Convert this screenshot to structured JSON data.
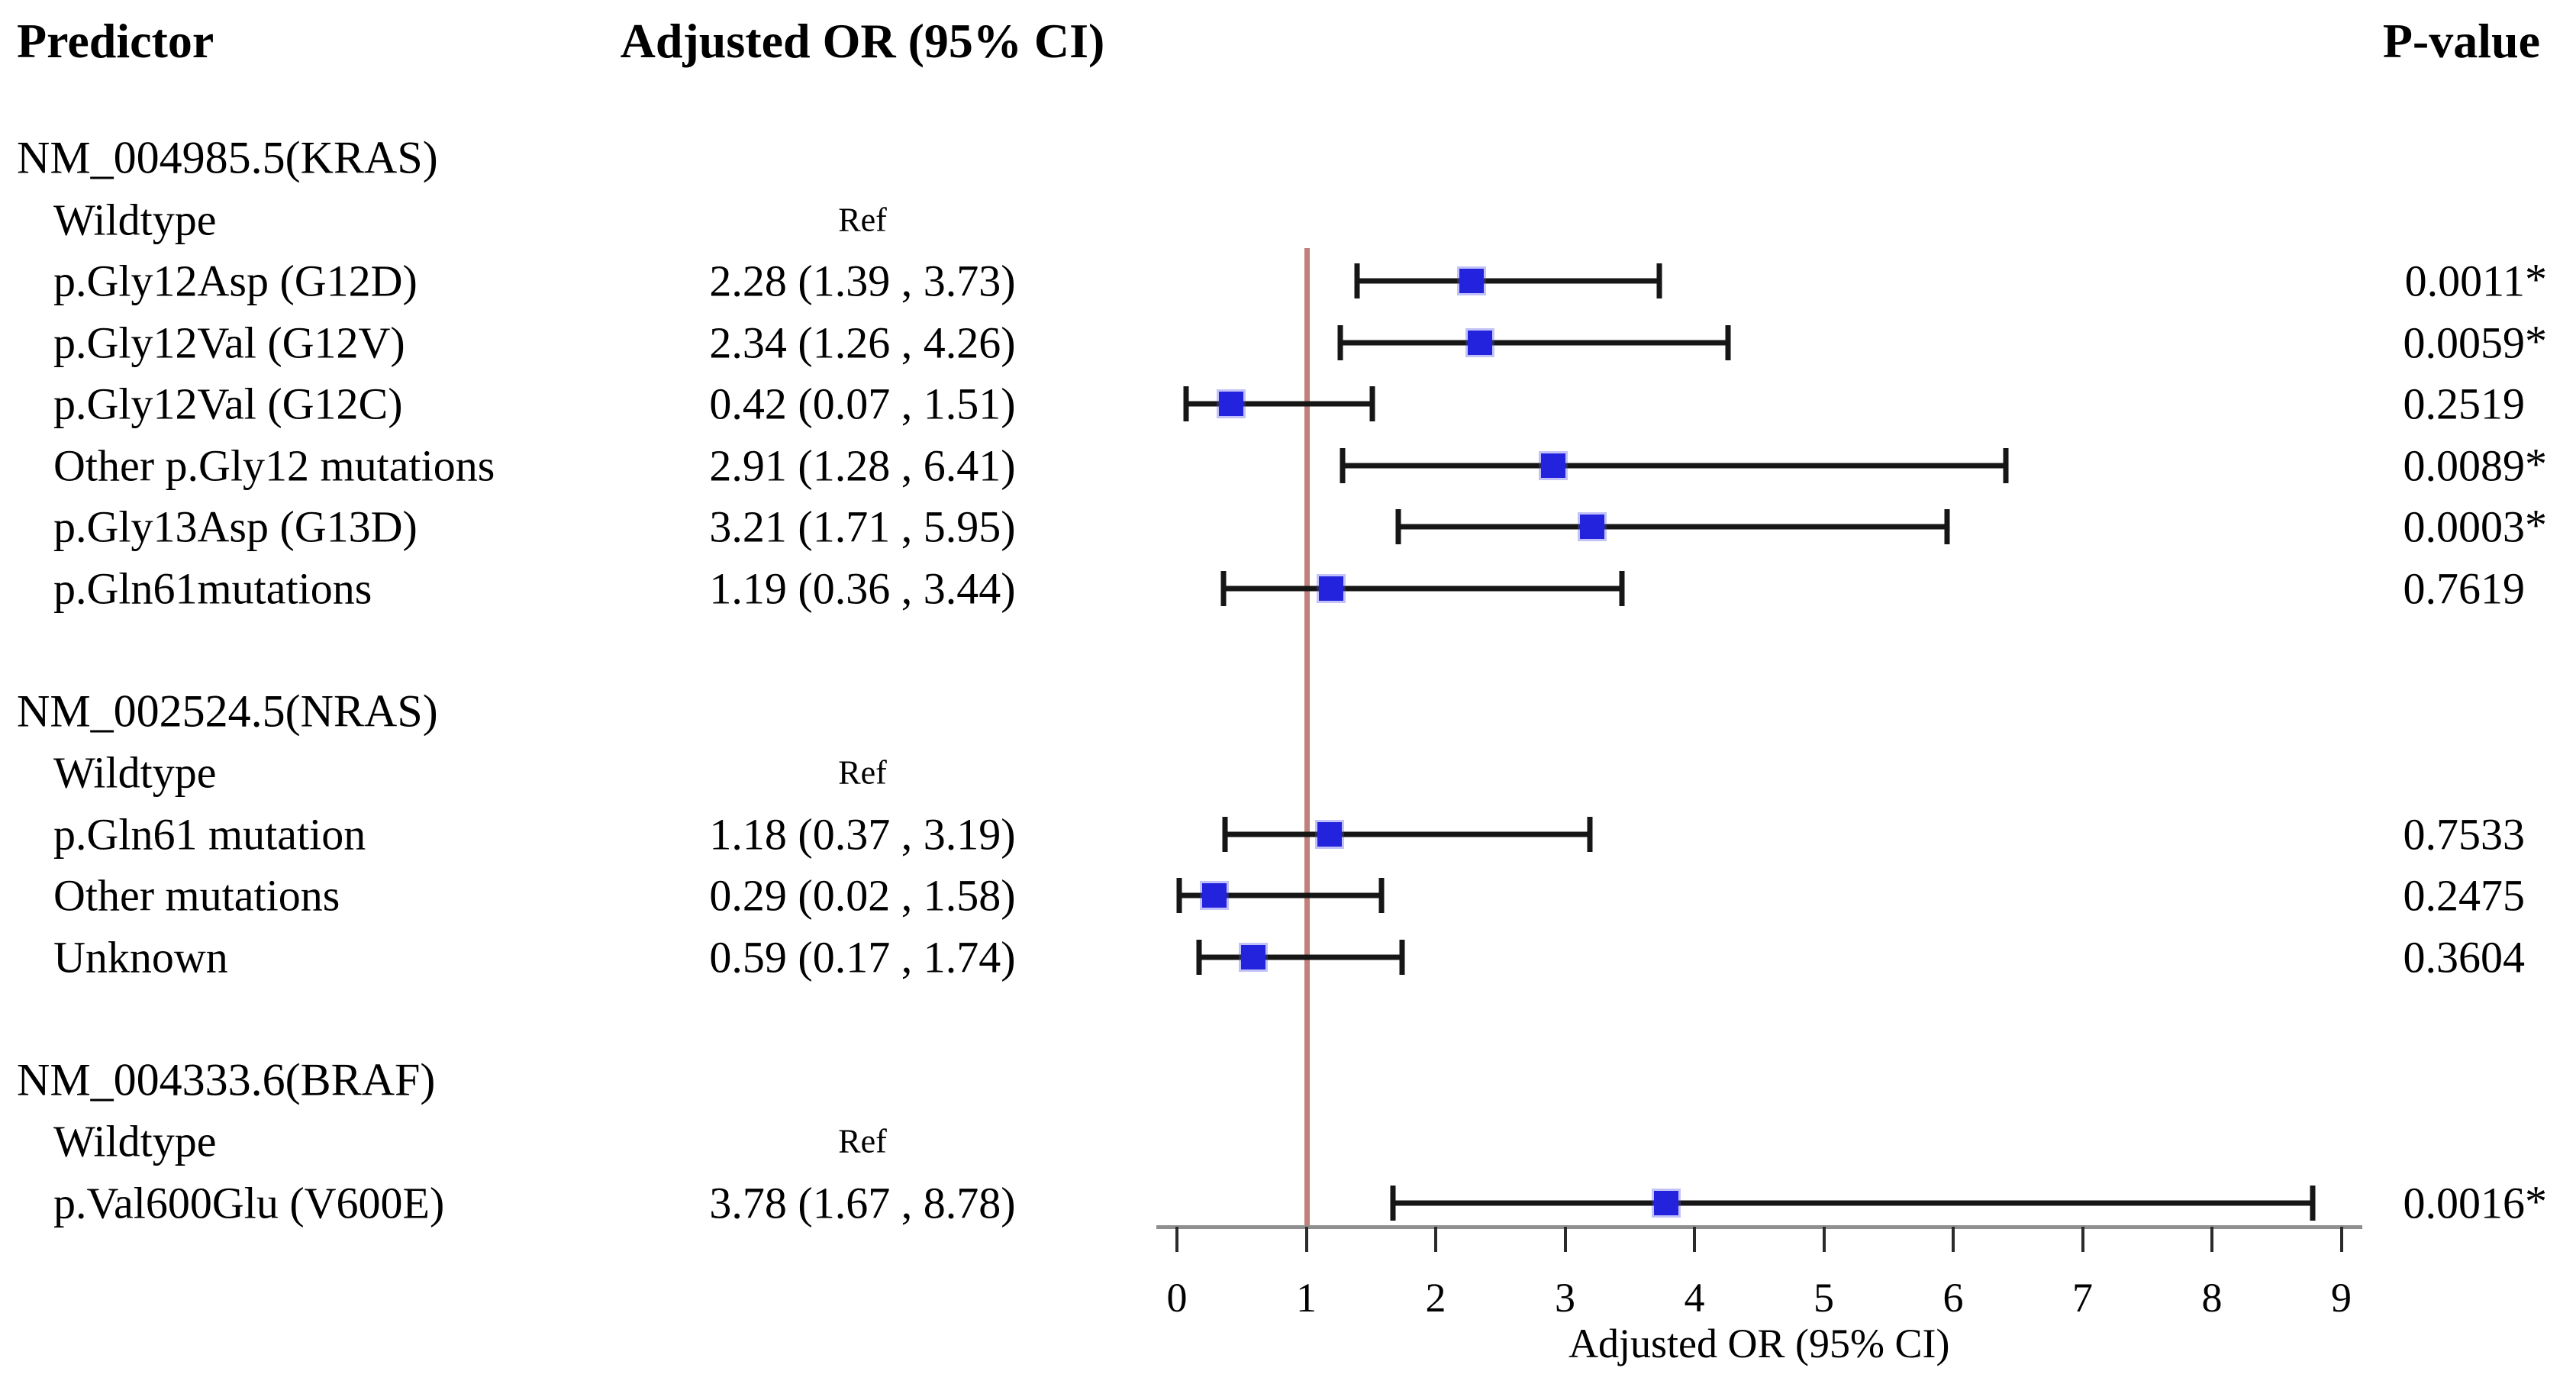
{
  "columns": {
    "predictor": "Predictor",
    "adjusted_or": "Adjusted OR (95% CI)",
    "p_value": "P-value"
  },
  "chart_data": {
    "type": "scatter",
    "variant": "forest-plot",
    "title": "",
    "xlabel": "Adjusted OR (95% CI)",
    "ylabel": "",
    "xlim": [
      0,
      9
    ],
    "x_ticks": [
      "0",
      "1",
      "2",
      "3",
      "4",
      "5",
      "6",
      "7",
      "8",
      "9"
    ],
    "grid": "off",
    "reference_line_x": 1,
    "marker_shape": "square",
    "series": [
      {
        "gene": "NM_004985.5(KRAS)",
        "rows": [
          {
            "label": "Wildtype",
            "or_text": "Ref",
            "is_ref": true
          },
          {
            "label": "p.Gly12Asp (G12D)",
            "or_text": "2.28 (1.39 , 3.73)",
            "or": 2.28,
            "ci_low": 1.39,
            "ci_high": 3.73,
            "p_text": "0.0011*"
          },
          {
            "label": "p.Gly12Val (G12V)",
            "or_text": "2.34 (1.26 , 4.26)",
            "or": 2.34,
            "ci_low": 1.26,
            "ci_high": 4.26,
            "p_text": "0.0059*"
          },
          {
            "label": "p.Gly12Val (G12C)",
            "or_text": "0.42 (0.07 , 1.51)",
            "or": 0.42,
            "ci_low": 0.07,
            "ci_high": 1.51,
            "p_text": "0.2519"
          },
          {
            "label": "Other p.Gly12 mutations",
            "or_text": "2.91 (1.28 , 6.41)",
            "or": 2.91,
            "ci_low": 1.28,
            "ci_high": 6.41,
            "p_text": "0.0089*"
          },
          {
            "label": "p.Gly13Asp (G13D)",
            "or_text": "3.21 (1.71 , 5.95)",
            "or": 3.21,
            "ci_low": 1.71,
            "ci_high": 5.95,
            "p_text": "0.0003*"
          },
          {
            "label": "p.Gln61mutations",
            "or_text": "1.19 (0.36 , 3.44)",
            "or": 1.19,
            "ci_low": 0.36,
            "ci_high": 3.44,
            "p_text": "0.7619"
          }
        ]
      },
      {
        "gene": "NM_002524.5(NRAS)",
        "rows": [
          {
            "label": "Wildtype",
            "or_text": "Ref",
            "is_ref": true
          },
          {
            "label": "p.Gln61 mutation",
            "or_text": "1.18 (0.37 , 3.19)",
            "or": 1.18,
            "ci_low": 0.37,
            "ci_high": 3.19,
            "p_text": "0.7533"
          },
          {
            "label": "Other mutations",
            "or_text": "0.29 (0.02 , 1.58)",
            "or": 0.29,
            "ci_low": 0.02,
            "ci_high": 1.58,
            "p_text": "0.2475"
          },
          {
            "label": "Unknown",
            "or_text": "0.59 (0.17 , 1.74)",
            "or": 0.59,
            "ci_low": 0.17,
            "ci_high": 1.74,
            "p_text": "0.3604"
          }
        ]
      },
      {
        "gene": "NM_004333.6(BRAF)",
        "rows": [
          {
            "label": "Wildtype",
            "or_text": "Ref",
            "is_ref": true
          },
          {
            "label": "p.Val600Glu (V600E)",
            "or_text": "3.78 (1.67 , 8.78)",
            "or": 3.78,
            "ci_low": 1.67,
            "ci_high": 8.78,
            "p_text": "0.0016*"
          }
        ]
      }
    ]
  },
  "colors": {
    "marker": "#2323dd",
    "whisker": "#161616",
    "reference_line": "#c0807c",
    "axis_line": "#8f8f8f",
    "text": "#000000"
  }
}
